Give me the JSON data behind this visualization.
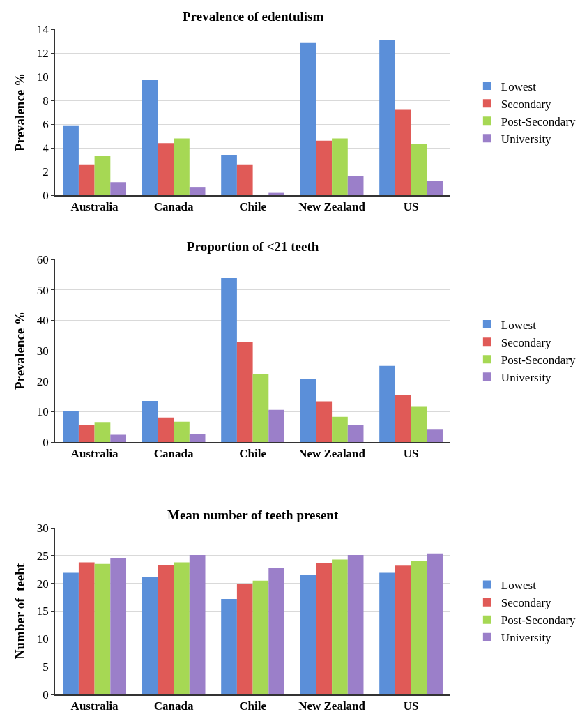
{
  "chart_data": [
    {
      "type": "bar",
      "title": "Prevalence of edentulism",
      "ylabel": "Prevalence %",
      "categories": [
        "Australia",
        "Canada",
        "Chile",
        "New Zealand",
        "US"
      ],
      "ylim": [
        0,
        14
      ],
      "yticks": [
        0,
        2,
        4,
        6,
        8,
        10,
        12,
        14
      ],
      "grid": "y",
      "legend": "right",
      "series": [
        {
          "name": "Lowest",
          "color": "#5b8fd9",
          "values": [
            5.9,
            9.7,
            3.4,
            12.9,
            13.1
          ]
        },
        {
          "name": "Secondary",
          "color": "#e05a57",
          "values": [
            2.6,
            4.4,
            2.6,
            4.6,
            7.2
          ]
        },
        {
          "name": "Post-Secondary",
          "color": "#a6d854",
          "values": [
            3.3,
            4.8,
            null,
            4.8,
            4.3
          ]
        },
        {
          "name": "University",
          "color": "#9b7fc9",
          "values": [
            1.1,
            0.7,
            0.2,
            1.6,
            1.2
          ]
        }
      ]
    },
    {
      "type": "bar",
      "title": "Proportion of <21 teeth",
      "ylabel": "Prevalence %",
      "categories": [
        "Australia",
        "Canada",
        "Chile",
        "New Zealand",
        "US"
      ],
      "ylim": [
        0,
        60
      ],
      "yticks": [
        0,
        10,
        20,
        30,
        40,
        50,
        60
      ],
      "grid": "y",
      "legend": "right",
      "series": [
        {
          "name": "Lowest",
          "color": "#5b8fd9",
          "values": [
            10.2,
            13.5,
            54,
            20.6,
            25
          ]
        },
        {
          "name": "Secondary",
          "color": "#e05a57",
          "values": [
            5.6,
            8.1,
            32.8,
            13.4,
            15.6
          ]
        },
        {
          "name": "Post-Secondary",
          "color": "#a6d854",
          "values": [
            6.6,
            6.7,
            22.3,
            8.3,
            11.8
          ]
        },
        {
          "name": "University",
          "color": "#9b7fc9",
          "values": [
            2.4,
            2.6,
            10.6,
            5.5,
            4.3
          ]
        }
      ]
    },
    {
      "type": "bar",
      "title": "Mean number of teeth present",
      "ylabel": "Number of  teeht",
      "categories": [
        "Australia",
        "Canada",
        "Chile",
        "New Zealand",
        "US"
      ],
      "ylim": [
        0,
        30
      ],
      "yticks": [
        0,
        5,
        10,
        15,
        20,
        25,
        30
      ],
      "grid": "y",
      "legend": "right",
      "series": [
        {
          "name": "Lowest",
          "color": "#5b8fd9",
          "values": [
            21.9,
            21.2,
            17.2,
            21.6,
            21.9
          ]
        },
        {
          "name": "Secondary",
          "color": "#e05a57",
          "values": [
            23.8,
            23.3,
            19.9,
            23.7,
            23.2
          ]
        },
        {
          "name": "Post-Secondary",
          "color": "#a6d854",
          "values": [
            23.5,
            23.8,
            20.5,
            24.3,
            24.0
          ]
        },
        {
          "name": "University",
          "color": "#9b7fc9",
          "values": [
            24.6,
            25.1,
            22.8,
            25.1,
            25.4
          ]
        }
      ]
    }
  ]
}
